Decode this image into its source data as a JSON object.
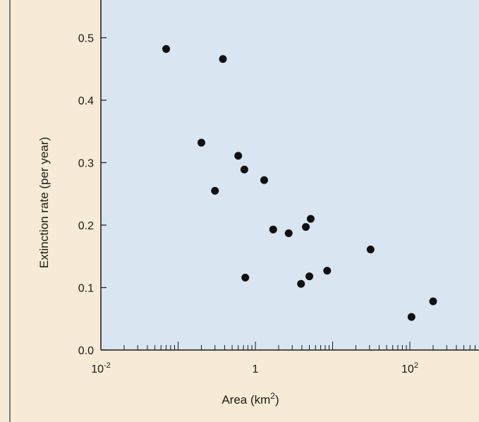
{
  "chart_data": {
    "type": "scatter",
    "title": "",
    "xlabel": "Area (km2)",
    "xlabel_parts": {
      "base": "Area (km",
      "sup": "2",
      "end": ")"
    },
    "ylabel": "Extinction rate (per year)",
    "x_scale": "log",
    "xlim": [
      0.01,
      1000
    ],
    "ylim": [
      0,
      0.55
    ],
    "grid": false,
    "y_ticks": [
      {
        "value": 0.0,
        "label": "0.0"
      },
      {
        "value": 0.1,
        "label": "0.1"
      },
      {
        "value": 0.2,
        "label": "0.2"
      },
      {
        "value": 0.3,
        "label": "0.3"
      },
      {
        "value": 0.4,
        "label": "0.4"
      },
      {
        "value": 0.5,
        "label": "0.5"
      }
    ],
    "x_ticks": [
      {
        "value": 0.01,
        "base": "10",
        "sup": "-2"
      },
      {
        "value": 1,
        "base": "1",
        "sup": ""
      },
      {
        "value": 100,
        "base": "10",
        "sup": "2"
      }
    ],
    "points": [
      {
        "x": 0.07,
        "y": 0.482
      },
      {
        "x": 0.2,
        "y": 0.332
      },
      {
        "x": 0.3,
        "y": 0.255
      },
      {
        "x": 0.38,
        "y": 0.466
      },
      {
        "x": 0.6,
        "y": 0.311
      },
      {
        "x": 0.72,
        "y": 0.289
      },
      {
        "x": 0.74,
        "y": 0.116
      },
      {
        "x": 1.3,
        "y": 0.272
      },
      {
        "x": 1.7,
        "y": 0.193
      },
      {
        "x": 2.7,
        "y": 0.187
      },
      {
        "x": 3.9,
        "y": 0.106
      },
      {
        "x": 4.5,
        "y": 0.197
      },
      {
        "x": 5.0,
        "y": 0.118
      },
      {
        "x": 5.2,
        "y": 0.21
      },
      {
        "x": 8.5,
        "y": 0.127
      },
      {
        "x": 31,
        "y": 0.161
      },
      {
        "x": 105,
        "y": 0.053
      },
      {
        "x": 200,
        "y": 0.078
      }
    ]
  },
  "colors": {
    "page_bg": "#f7ead6",
    "plot_bg": "#dae5f2",
    "axis": "#1a1a1a",
    "point": "#111111"
  }
}
